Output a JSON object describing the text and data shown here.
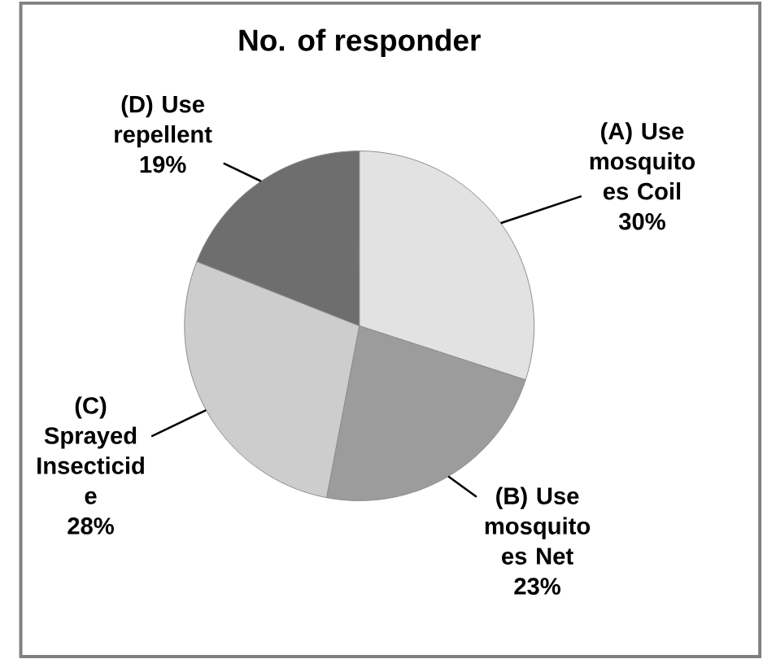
{
  "chart_data": {
    "type": "pie",
    "title": "No. of responder",
    "categories": [
      "(A) Use mosquito es Coil",
      "(B) Use mosquito es Net",
      "(C) Sprayed Insecticid e",
      "(D) Use repellent"
    ],
    "values": [
      30,
      23,
      28,
      19
    ],
    "value_labels": [
      "30%",
      "23%",
      "28%",
      "19%"
    ],
    "colors": [
      "#e2e2e2",
      "#9c9c9c",
      "#cdcdcd",
      "#6e6e6e"
    ]
  }
}
